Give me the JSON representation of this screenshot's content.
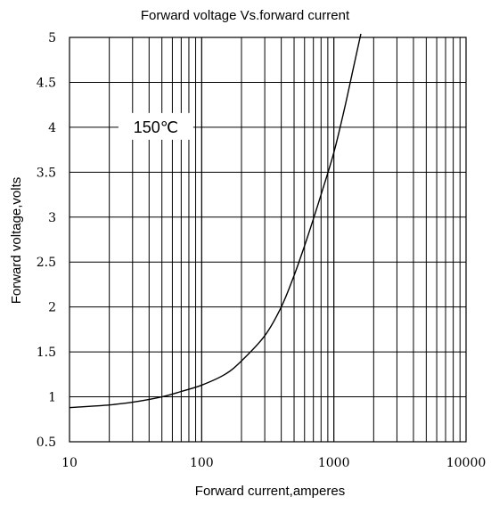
{
  "chart_data": {
    "type": "line",
    "title": "Forward voltage Vs.forward current",
    "xlabel": "Forward current,amperes",
    "ylabel": "Forward voltage,volts",
    "x_scale": "log",
    "xlim": [
      10,
      10000
    ],
    "ylim": [
      0.5,
      5
    ],
    "grid": true,
    "x_ticks": [
      10,
      100,
      1000,
      10000
    ],
    "x_tick_labels": [
      "10",
      "100",
      "1000",
      "10000"
    ],
    "y_ticks": [
      0.5,
      1,
      1.5,
      2,
      2.5,
      3,
      3.5,
      4,
      4.5,
      5
    ],
    "y_tick_labels": [
      "0.5",
      "1",
      "1.5",
      "2",
      "2.5",
      "3",
      "3.5",
      "4",
      "4.5",
      "5"
    ],
    "annotations": [
      {
        "text": "150℃",
        "x": 45,
        "y": 4
      }
    ],
    "series": [
      {
        "x": [
          10,
          20,
          30,
          50,
          70,
          100,
          150,
          200,
          300,
          400,
          500,
          600,
          700,
          800,
          1000,
          1200,
          1400,
          1600
        ],
        "y": [
          0.88,
          0.91,
          0.94,
          1.0,
          1.06,
          1.13,
          1.25,
          1.4,
          1.68,
          2.0,
          2.35,
          2.68,
          2.98,
          3.25,
          3.72,
          4.2,
          4.65,
          5.05
        ]
      }
    ]
  }
}
